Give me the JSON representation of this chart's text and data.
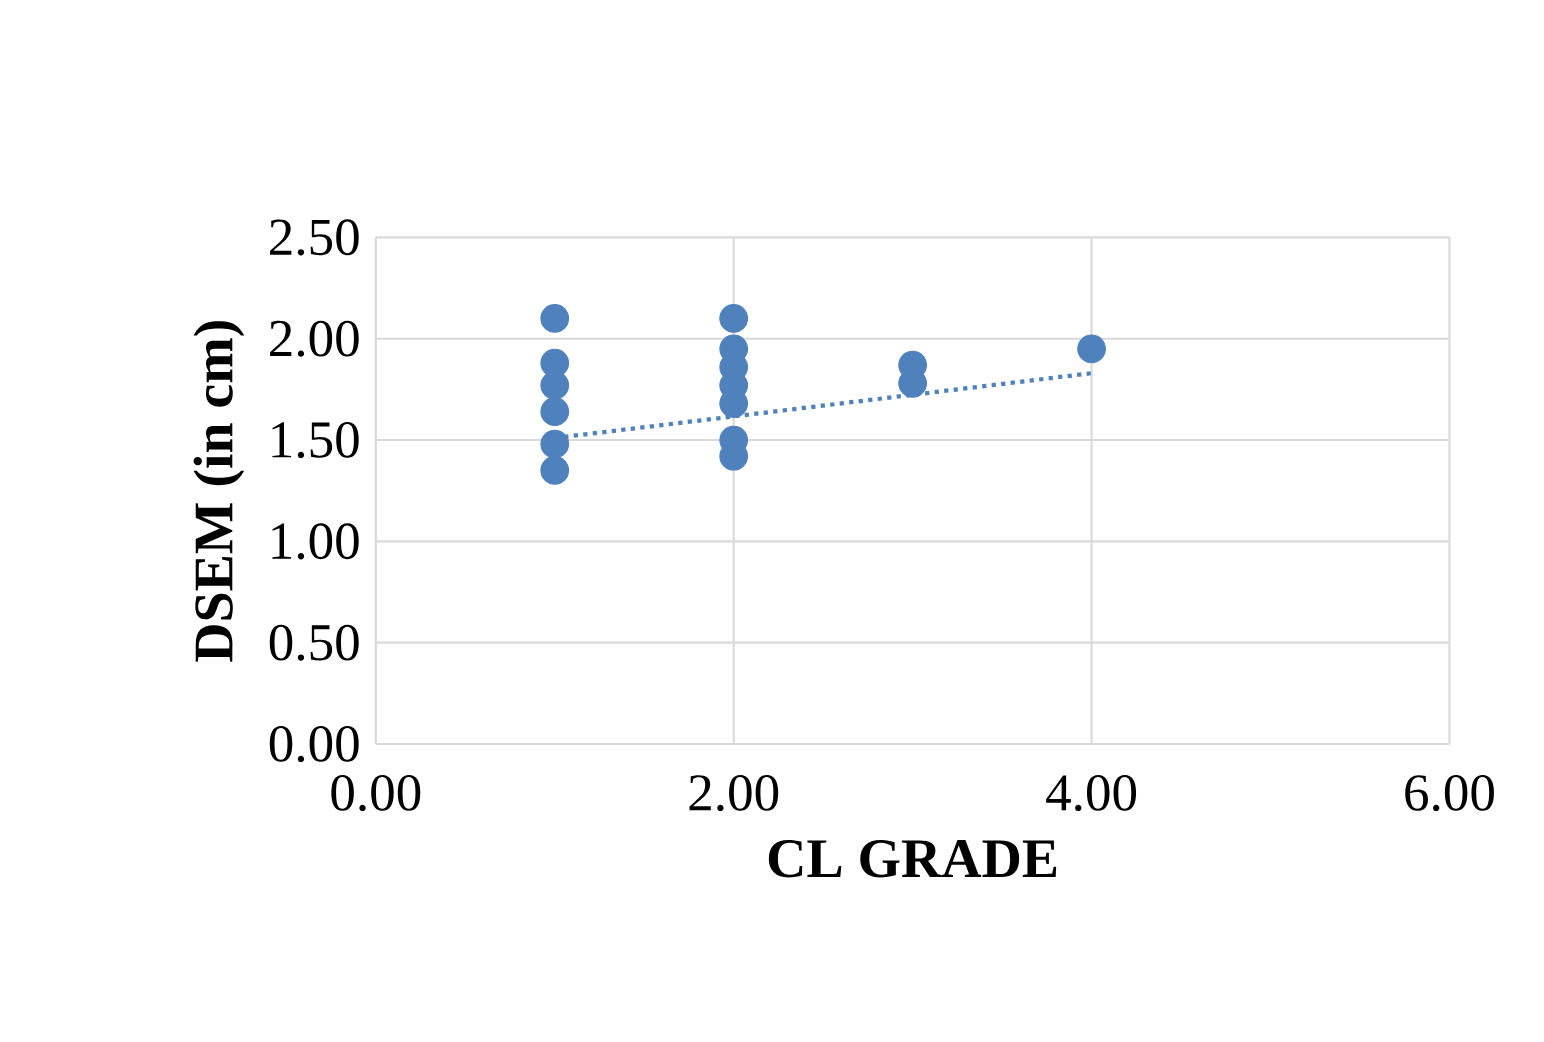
{
  "chart_data": {
    "type": "scatter",
    "xlabel": "CL GRADE",
    "ylabel": "DSEM  (in cm)",
    "xlim": [
      0,
      6
    ],
    "xticks": [
      {
        "value": 0,
        "label": "0.00"
      },
      {
        "value": 2,
        "label": "2.00"
      },
      {
        "value": 4,
        "label": "4.00"
      },
      {
        "value": 6,
        "label": "6.00"
      }
    ],
    "ylim": [
      0,
      2.5
    ],
    "yticks": [
      {
        "value": 0,
        "label": "0.00"
      },
      {
        "value": 0.5,
        "label": "0.50"
      },
      {
        "value": 1,
        "label": "1.00"
      },
      {
        "value": 1.5,
        "label": "1.50"
      },
      {
        "value": 2,
        "label": "2.00"
      },
      {
        "value": 2.5,
        "label": "2.50"
      }
    ],
    "grid": true,
    "series": [
      {
        "color": "#4f81bd",
        "marker": "circle",
        "x": [
          1,
          1,
          1,
          1,
          1,
          1,
          2,
          2,
          2,
          2,
          2,
          2,
          2,
          3,
          3,
          4
        ],
        "values": [
          2.1,
          1.88,
          1.77,
          1.64,
          1.48,
          1.35,
          2.1,
          1.95,
          1.86,
          1.77,
          1.68,
          1.5,
          1.42,
          1.87,
          1.78,
          1.95
        ]
      },
      {
        "type": "line",
        "color": "#4f81bd",
        "marker": "none",
        "line_style": "dotted",
        "x": [
          1,
          4
        ],
        "values": [
          1.51,
          1.83
        ]
      }
    ]
  }
}
